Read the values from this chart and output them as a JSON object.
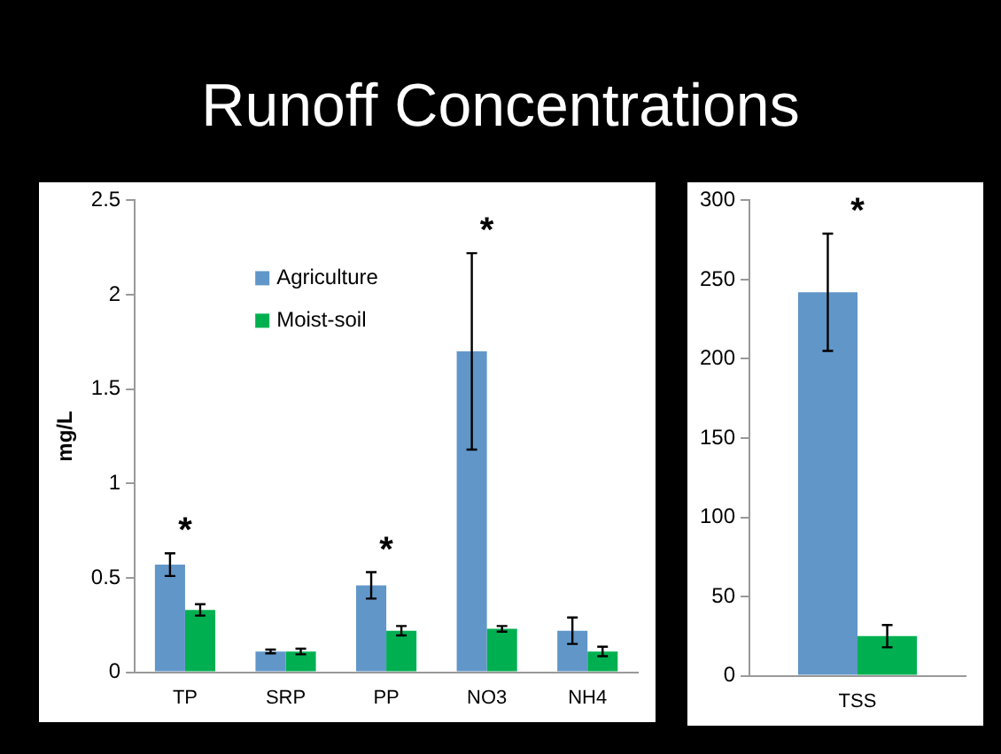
{
  "chart_data": [
    {
      "type": "bar",
      "title": "Runoff Concentrations",
      "ylabel": "mg/L",
      "categories": [
        "TP",
        "SRP",
        "PP",
        "NO3",
        "NH4"
      ],
      "series": [
        {
          "name": "Agriculture",
          "color": "#6196c9",
          "values": [
            0.57,
            0.11,
            0.46,
            1.7,
            0.22
          ],
          "errors": [
            0.06,
            0.01,
            0.07,
            0.52,
            0.07
          ]
        },
        {
          "name": "Moist-soil",
          "color": "#00b050",
          "values": [
            0.33,
            0.11,
            0.22,
            0.23,
            0.11
          ],
          "errors": [
            0.03,
            0.015,
            0.025,
            0.015,
            0.025
          ]
        }
      ],
      "ylim": [
        0,
        2.5
      ],
      "yticks": [
        0,
        0.5,
        1,
        1.5,
        2,
        2.5
      ],
      "grid": false,
      "legend": "top left",
      "annotations": [
        {
          "text": "*",
          "x": "TP",
          "y": 0.57
        },
        {
          "text": "*",
          "x": "PP",
          "y": 0.46
        },
        {
          "text": "*",
          "x": "NO3",
          "y": 1.7
        }
      ]
    },
    {
      "type": "bar",
      "categories": [
        "TSS"
      ],
      "series": [
        {
          "color": "#6196c9",
          "values": [
            242
          ],
          "errors": [
            37
          ]
        },
        {
          "color": "#00b050",
          "values": [
            25
          ],
          "errors": [
            7
          ]
        }
      ],
      "ylim": [
        0,
        300
      ],
      "yticks": [
        0,
        50,
        100,
        150,
        200,
        250,
        300
      ],
      "grid": false,
      "annotations": [
        {
          "text": "*",
          "x": "TSS",
          "y": 242
        }
      ]
    }
  ]
}
